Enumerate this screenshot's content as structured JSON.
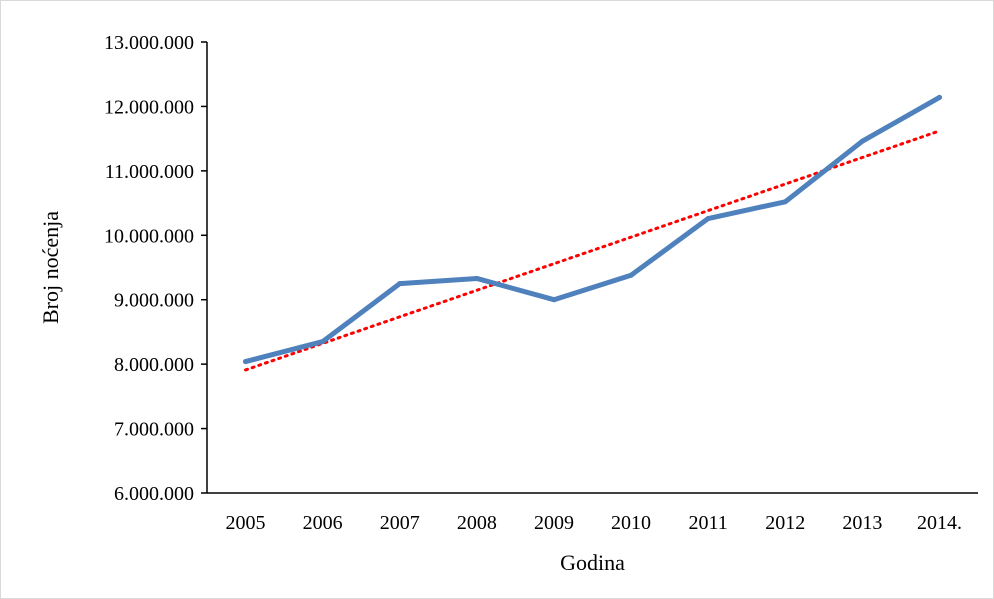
{
  "chart_data": {
    "type": "line",
    "title": "",
    "xlabel": "Godina",
    "ylabel": "Broj noćenja",
    "categories": [
      "2005",
      "2006",
      "2007",
      "2008",
      "2009",
      "2010",
      "2011",
      "2012",
      "2013",
      "2014."
    ],
    "series": [
      {
        "values": [
          8040000,
          8350000,
          9250000,
          9330000,
          9000000,
          9380000,
          10260000,
          10520000,
          11460000,
          12140000
        ]
      }
    ],
    "trendline": {
      "type": "linear",
      "start": 7910000,
      "end": 11620000
    },
    "ylim": [
      6000000,
      13000000
    ],
    "yticks": [
      6000000,
      7000000,
      8000000,
      9000000,
      10000000,
      11000000,
      12000000,
      13000000
    ],
    "ytick_labels": [
      "6.000.000",
      "7.000.000",
      "8.000.000",
      "9.000.000",
      "10.000.000",
      "11.000.000",
      "12.000.000",
      "13.000.000"
    ],
    "grid": false,
    "legend": "none",
    "colors": {
      "series": "#4f81bd",
      "trendline": "#ff0000",
      "axis": "#000000"
    }
  }
}
